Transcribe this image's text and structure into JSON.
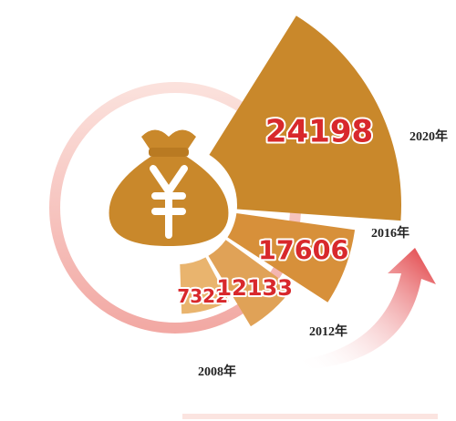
{
  "chart_data": {
    "type": "polar-bar",
    "categories": [
      "2008年",
      "2012年",
      "2016年",
      "2020年"
    ],
    "values": [
      7322,
      12133,
      17606,
      24198
    ],
    "colors": [
      "#e9b46e",
      "#e0a257",
      "#d7903a",
      "#c9882b"
    ]
  }
}
